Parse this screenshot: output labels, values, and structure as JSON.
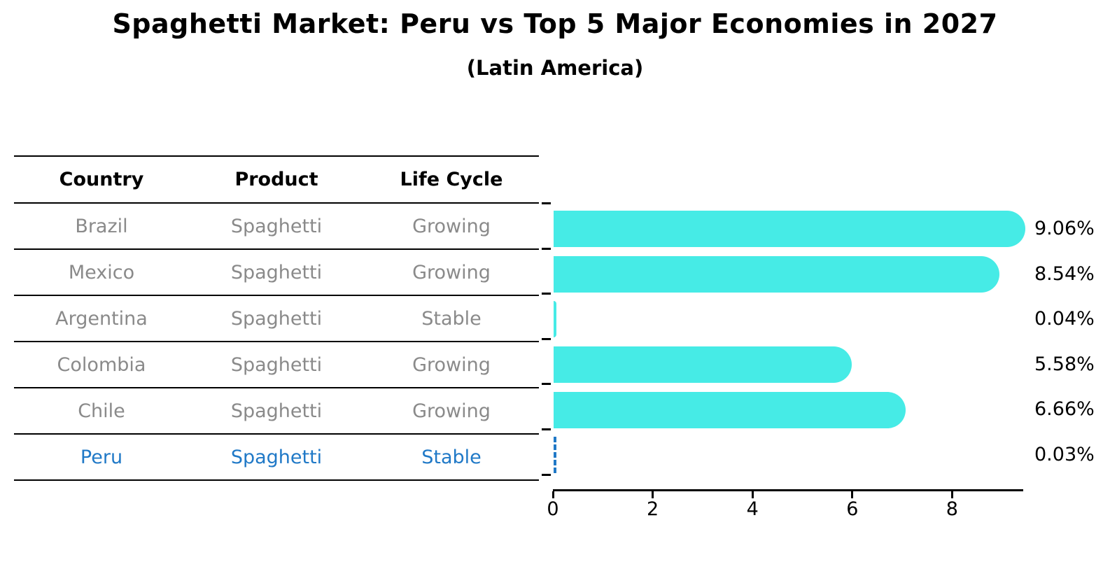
{
  "header": {
    "title": "Spaghetti Market: Peru vs Top 5 Major Economies in 2027",
    "subtitle": "(Latin America)"
  },
  "table": {
    "headers": [
      "Country",
      "Product",
      "Life Cycle"
    ],
    "rows": [
      {
        "country": "Brazil",
        "product": "Spaghetti",
        "life_cycle": "Growing",
        "highlighted": false
      },
      {
        "country": "Mexico",
        "product": "Spaghetti",
        "life_cycle": "Growing",
        "highlighted": false
      },
      {
        "country": "Argentina",
        "product": "Spaghetti",
        "life_cycle": "Stable",
        "highlighted": false
      },
      {
        "country": "Colombia",
        "product": "Spaghetti",
        "life_cycle": "Growing",
        "highlighted": false
      },
      {
        "country": "Chile",
        "product": "Spaghetti",
        "life_cycle": "Growing",
        "highlighted": false
      },
      {
        "country": "Peru",
        "product": "Spaghetti",
        "life_cycle": "Stable",
        "highlighted": true
      }
    ]
  },
  "chart_data": {
    "type": "bar",
    "orientation": "horizontal",
    "title": "Spaghetti Market: Peru vs Top 5 Major Economies in 2027",
    "subtitle": "(Latin America)",
    "categories": [
      "Brazil",
      "Mexico",
      "Argentina",
      "Colombia",
      "Chile",
      "Peru"
    ],
    "values": [
      9.06,
      8.54,
      0.04,
      5.58,
      6.66,
      0.03
    ],
    "value_labels": [
      "9.06%",
      "8.54%",
      "0.04%",
      "5.58%",
      "6.66%",
      "0.03%"
    ],
    "xlabel": "",
    "ylabel": "",
    "xlim": [
      0,
      9.4
    ],
    "xticks": [
      0,
      2,
      4,
      6,
      8
    ],
    "grid": false,
    "legend": null,
    "bar_color": "#46EBE6",
    "highlight": {
      "index": 5,
      "style": "dashed-outline",
      "color": "#2079C7"
    }
  },
  "colors": {
    "text": "#000000",
    "muted_text": "#8a8a8a",
    "accent_blue": "#2079C7",
    "bar": "#46EBE6"
  }
}
